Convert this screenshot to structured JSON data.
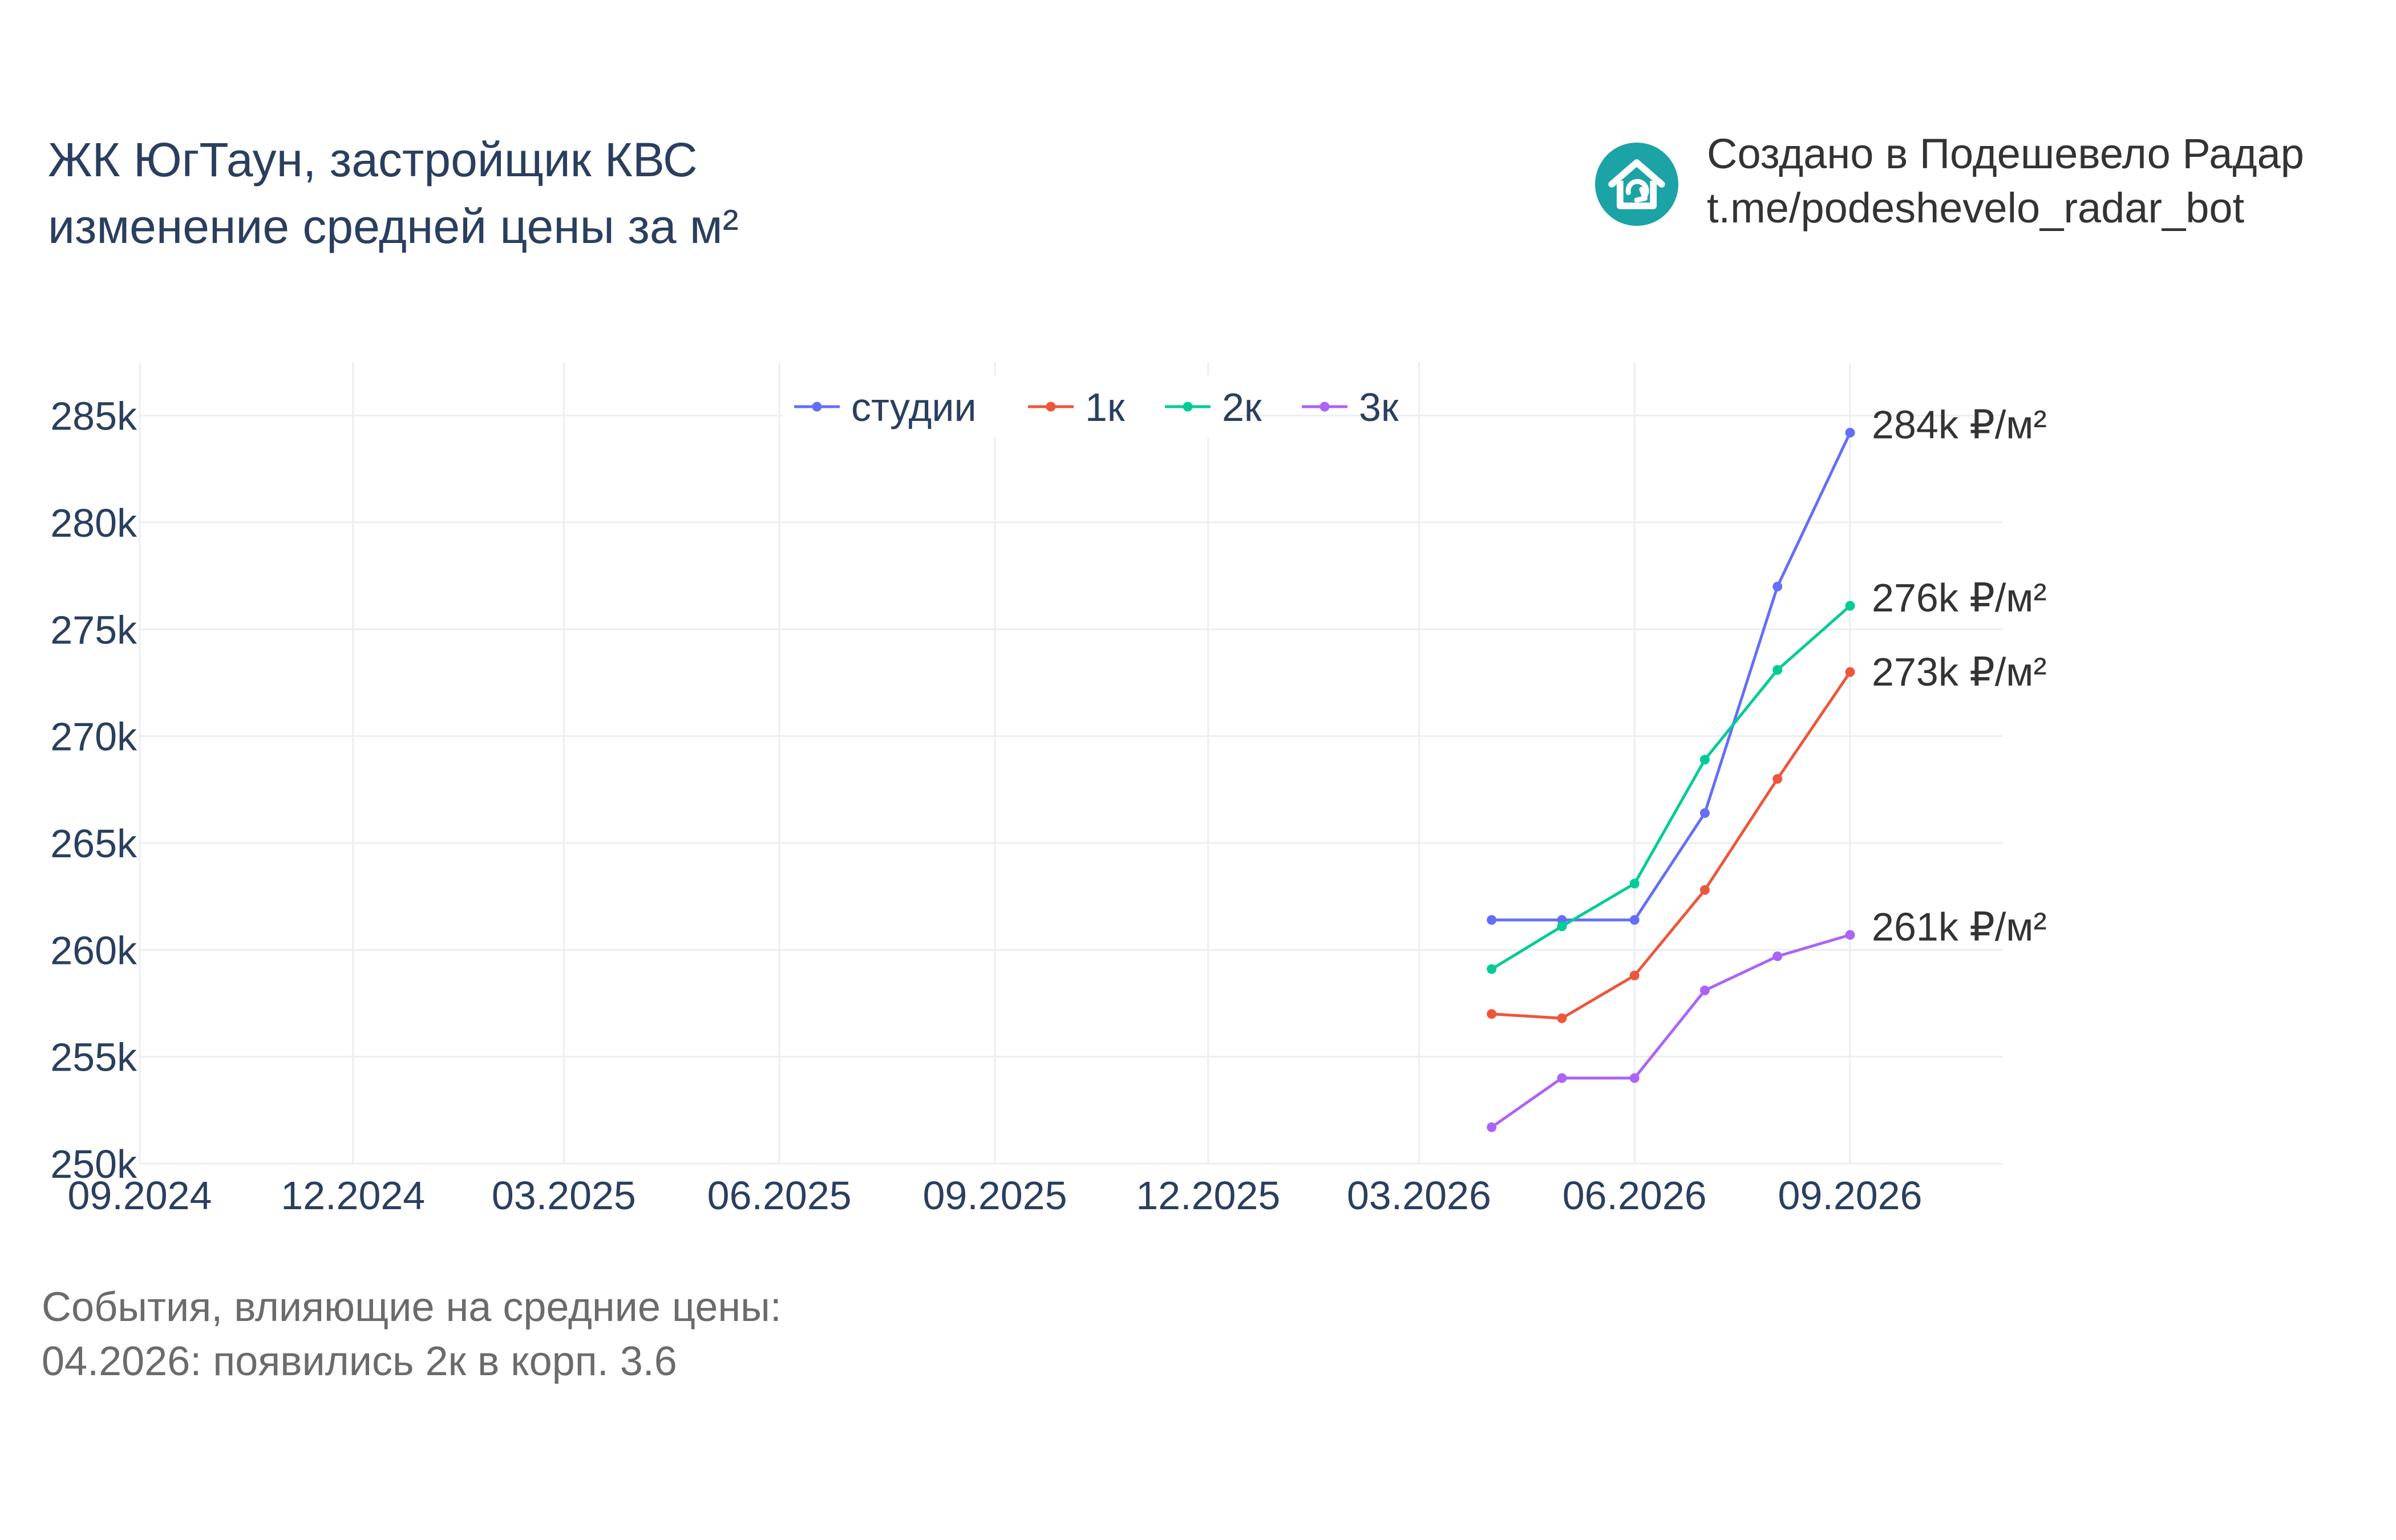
{
  "header": {
    "title_line1": "ЖК ЮгТаун, застройщик КВС",
    "title_line2": "изменение средней цены за м²"
  },
  "branding": {
    "line1": "Создано в Подешевело Радар",
    "line2": "t.me/podeshevelo_radar_bot",
    "icon": "house-logo-icon",
    "logo_color": "#1ba3a6"
  },
  "events": {
    "heading": "События, влияющие на средние цены:",
    "items": [
      "04.2026: появились 2к в корп. 3.6"
    ]
  },
  "chart_data": {
    "type": "line",
    "x_tick_labels": [
      "09.2024",
      "12.2024",
      "03.2025",
      "06.2025",
      "09.2025",
      "12.2025",
      "03.2026",
      "06.2026",
      "09.2026"
    ],
    "x_ticks": [
      "2024-09-01",
      "2024-12-01",
      "2025-03-01",
      "2025-06-01",
      "2025-09-01",
      "2025-12-01",
      "2026-03-01",
      "2026-06-01",
      "2026-09-01"
    ],
    "xlim": [
      "2024-09-01",
      "2026-11-05"
    ],
    "ylim": [
      250000,
      287500
    ],
    "y_ticks": [
      250000,
      255000,
      260000,
      265000,
      270000,
      275000,
      280000,
      285000
    ],
    "y_tick_labels": [
      "250k",
      "255k",
      "260k",
      "265k",
      "270k",
      "275k",
      "280k",
      "285k"
    ],
    "grid": true,
    "legend_position": "top-center",
    "x": [
      "2026-04-01",
      "2026-05-01",
      "2026-06-01",
      "2026-07-01",
      "2026-08-01",
      "2026-09-01"
    ],
    "series": [
      {
        "name": "студии",
        "color": "#636efa",
        "values": [
          261400,
          261400,
          261400,
          266400,
          277000,
          284200
        ],
        "end_label": "284k ₽/м²"
      },
      {
        "name": "1к",
        "color": "#ef553b",
        "values": [
          257000,
          256800,
          258800,
          262800,
          268000,
          273000
        ],
        "end_label": "273k ₽/м²"
      },
      {
        "name": "2к",
        "color": "#00cc96",
        "values": [
          259100,
          261100,
          263100,
          268900,
          273100,
          276100
        ],
        "end_label": "276k ₽/м²"
      },
      {
        "name": "3к",
        "color": "#ab63fa",
        "values": [
          251700,
          254000,
          254000,
          258100,
          259700,
          260700
        ],
        "end_label": "261k ₽/м²"
      }
    ]
  }
}
